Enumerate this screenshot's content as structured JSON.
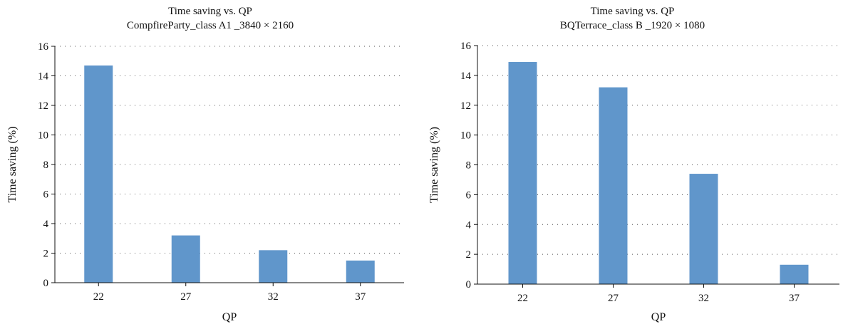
{
  "chart_data": [
    {
      "type": "bar",
      "title": "Time saving vs. QP",
      "subtitle": "CompfireParty_class A1 _3840 × 2160",
      "xlabel": "QP",
      "ylabel": "Time saving (%)",
      "categories": [
        "22",
        "27",
        "32",
        "37"
      ],
      "values": [
        14.7,
        3.2,
        2.2,
        1.5
      ],
      "ylim": [
        0,
        16
      ],
      "yticks": [
        0,
        2,
        4,
        6,
        8,
        10,
        12,
        14,
        16
      ],
      "grid": "horizontal dotted",
      "bar_color": "#6096cb"
    },
    {
      "type": "bar",
      "title": "Time saving vs. QP",
      "subtitle": "BQTerrace_class B _1920 × 1080",
      "xlabel": "QP",
      "ylabel": "Time saving (%)",
      "categories": [
        "22",
        "27",
        "32",
        "37"
      ],
      "values": [
        14.9,
        13.2,
        7.4,
        1.3
      ],
      "ylim": [
        0,
        16
      ],
      "yticks": [
        0,
        2,
        4,
        6,
        8,
        10,
        12,
        14,
        16
      ],
      "grid": "horizontal dotted",
      "bar_color": "#6096cb"
    }
  ]
}
